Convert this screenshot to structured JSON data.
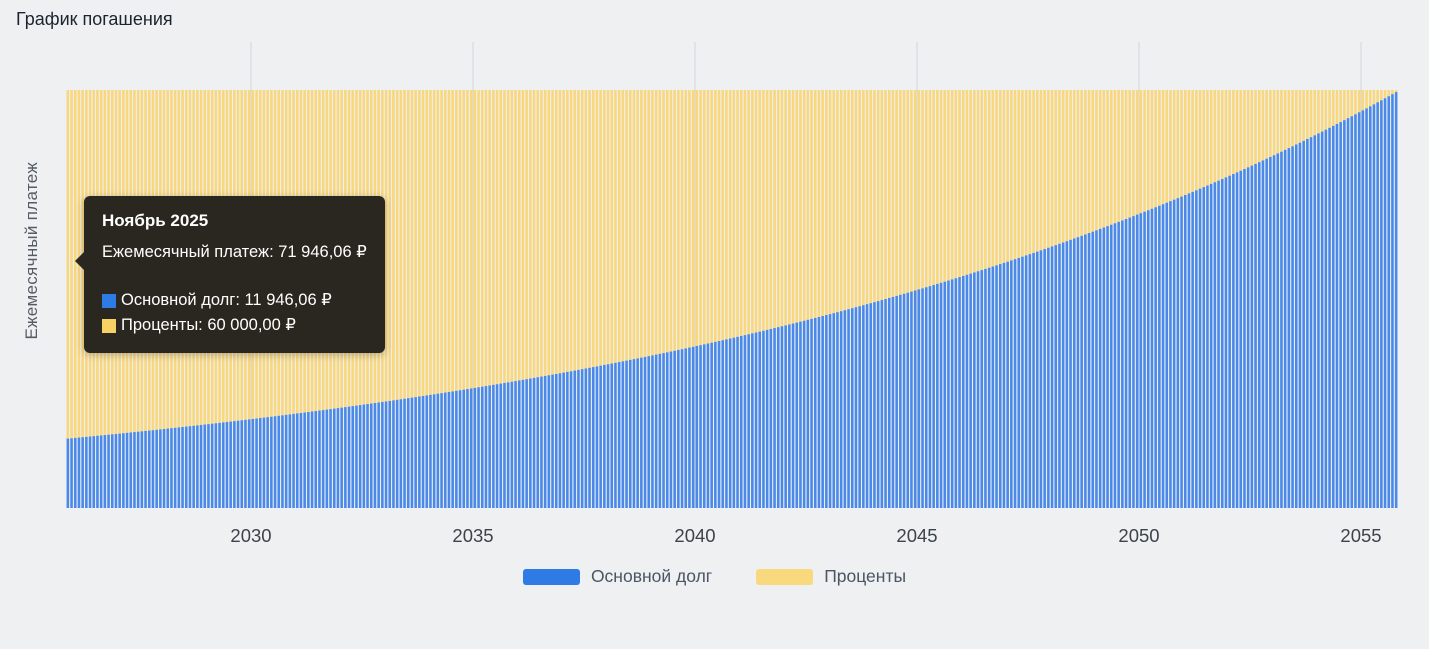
{
  "page": {
    "title": "График погашения",
    "background": "#eef0f2"
  },
  "chart_data": {
    "type": "bar",
    "stacked": true,
    "title": "График погашения",
    "ylabel": "Ежемесячный платеж",
    "xlabel": "",
    "x_ticks": [
      2030,
      2035,
      2040,
      2045,
      2050,
      2055
    ],
    "x_start": {
      "year": 2025,
      "month": 11
    },
    "months": 360,
    "monthly_payment": 71946.06,
    "monthly_rate": 0.005,
    "first_principal": 11946.06,
    "first_interest": 60000.0,
    "grid": "vertical-only",
    "legend_position": "bottom",
    "series": [
      {
        "name": "Основной долг",
        "color": "#4a89e8",
        "rule": "principal_m = min(payment, 11946.06 * 1.005^m)"
      },
      {
        "name": "Проценты",
        "color": "#f8d77d",
        "rule": "interest_m = payment - principal_m"
      }
    ]
  },
  "tooltip": {
    "title": "Ноябрь 2025",
    "total": "Ежемесячный платеж: 71 946,06 ₽",
    "items": [
      {
        "label": "Основной долг: 11 946,06 ₽",
        "color": "#2e7be5"
      },
      {
        "label": "Проценты: 60 000,00 ₽",
        "color": "#f6d265"
      }
    ]
  },
  "legend": {
    "items": [
      {
        "label": "Основной долг",
        "color": "#2e7be5"
      },
      {
        "label": "Проценты",
        "color": "#f8d97e"
      }
    ]
  }
}
